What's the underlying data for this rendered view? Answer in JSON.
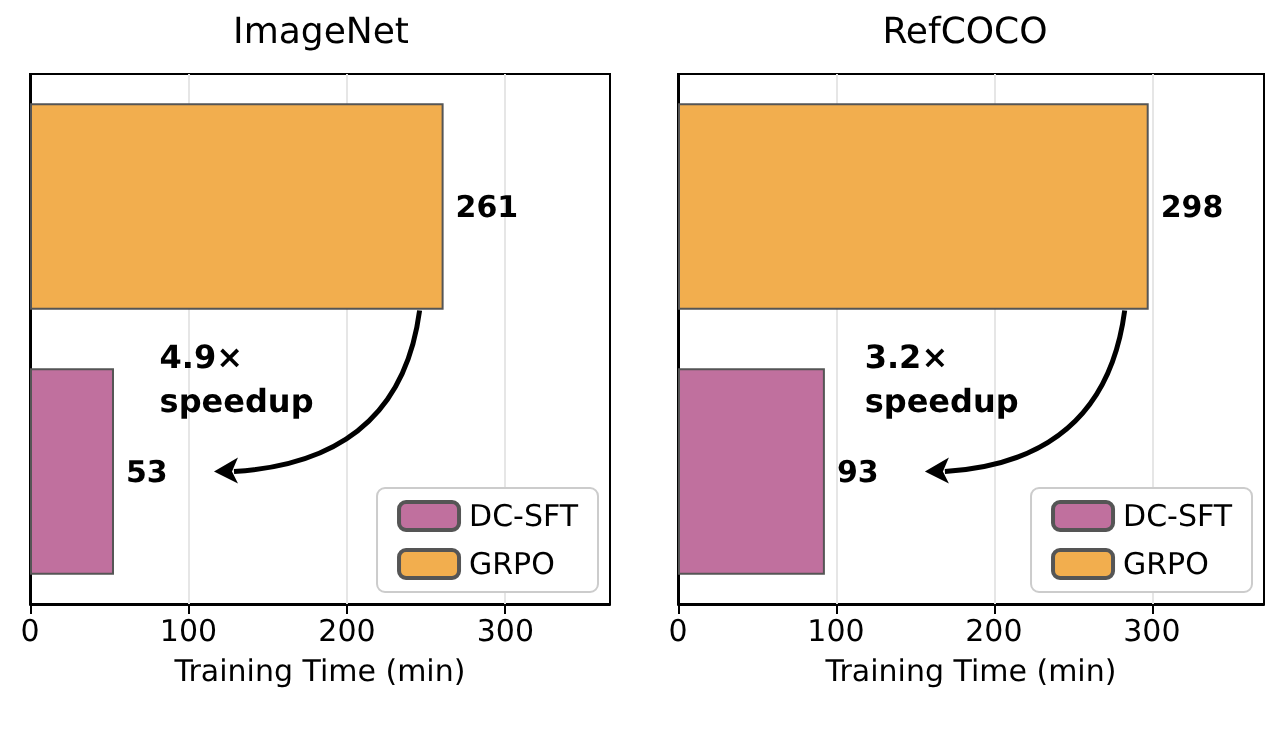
{
  "chart_data": [
    {
      "type": "bar",
      "title": "ImageNet",
      "xlabel": "Training Time (min)",
      "orientation": "horizontal",
      "categories": [
        null,
        null
      ],
      "series": [
        {
          "name": "DC-SFT",
          "color": "#c0709e",
          "values": [
            null,
            53
          ]
        },
        {
          "name": "GRPO",
          "color": "#f2ae4e",
          "values": [
            261,
            null
          ]
        }
      ],
      "xlim": [
        0,
        366
      ],
      "xticks": [
        0,
        100,
        200,
        300
      ],
      "grid": "x",
      "legend": "bottom right",
      "data_labels": true,
      "annotations": [
        "4.9×\nspeedup"
      ]
    },
    {
      "type": "bar",
      "title": "RefCOCO",
      "xlabel": "Training Time (min)",
      "orientation": "horizontal",
      "categories": [
        null,
        null
      ],
      "series": [
        {
          "name": "DC-SFT",
          "color": "#c0709e",
          "values": [
            null,
            93
          ]
        },
        {
          "name": "GRPO",
          "color": "#f2ae4e",
          "values": [
            298,
            null
          ]
        }
      ],
      "xlim": [
        0,
        371
      ],
      "xticks": [
        0,
        100,
        200,
        300
      ],
      "grid": "x",
      "legend": "bottom right",
      "data_labels": true,
      "annotations": [
        "3.2×\nspeedup"
      ]
    }
  ]
}
